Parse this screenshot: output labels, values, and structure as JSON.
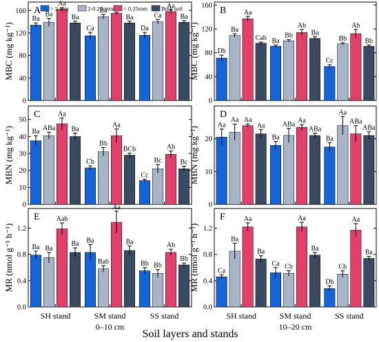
{
  "figure": {
    "xlabel": "Soil layers and stands",
    "stand_labels": [
      "SH stand",
      "SM stand",
      "SS stand"
    ],
    "depth_labels": [
      "0–10 cm",
      "10–20 cm"
    ]
  },
  "legend": [
    {
      "name": "> 2 mm",
      "color": "#1565d8"
    },
    {
      "name": "2-0.25 mm",
      "color": "#a8b4c8"
    },
    {
      "name": "< 0.25mm",
      "color": "#e0406a"
    },
    {
      "name": "Bulk soil",
      "color": "#3a4a60"
    }
  ],
  "chart_data": [
    {
      "panel": "A",
      "type": "bar",
      "ylabel": "MBC (mg kg⁻¹)",
      "ylim": [
        0,
        175
      ],
      "yticks": [
        0,
        40,
        80,
        120,
        160
      ],
      "categories": [
        "SH stand",
        "SM stand",
        "SS stand"
      ],
      "series": [
        {
          "name": "> 2 mm",
          "values": [
            134,
            115,
            116
          ],
          "errors": [
            4,
            6,
            5
          ],
          "letters": [
            "Ba",
            "Ca",
            "Da"
          ]
        },
        {
          "name": "2-0.25 mm",
          "values": [
            139,
            149,
            140
          ],
          "errors": [
            7,
            4,
            4
          ],
          "letters": [
            "Ba",
            "Ba",
            "Ca"
          ]
        },
        {
          "name": "< 0.25mm",
          "values": [
            162,
            155,
            158
          ],
          "errors": [
            3,
            2,
            3
          ],
          "letters": [
            "Aa",
            "Aa",
            "Aa"
          ]
        },
        {
          "name": "Bulk soil",
          "values": [
            138,
            138,
            139
          ],
          "errors": [
            3,
            3,
            3
          ],
          "letters": [
            "Ba",
            "Ba",
            "Ba"
          ]
        }
      ]
    },
    {
      "panel": "B",
      "type": "bar",
      "ylabel": "MBC (mg kg⁻¹)",
      "ylim": [
        0,
        165
      ],
      "yticks": [
        0,
        40,
        80,
        120,
        160
      ],
      "categories": [
        "SH stand",
        "SM stand",
        "SS stand"
      ],
      "series": [
        {
          "name": "> 2 mm",
          "values": [
            71,
            91,
            57
          ],
          "errors": [
            5,
            2,
            3
          ],
          "letters": [
            "Db",
            "Ba",
            "Cc"
          ]
        },
        {
          "name": "2-0.25 mm",
          "values": [
            109,
            100,
            95
          ],
          "errors": [
            3,
            2,
            2
          ],
          "letters": [
            "Ba",
            "Bb",
            "Bb"
          ]
        },
        {
          "name": "< 0.25mm",
          "values": [
            137,
            114,
            112
          ],
          "errors": [
            4,
            5,
            7
          ],
          "letters": [
            "Aa",
            "Ab",
            "Ab"
          ]
        },
        {
          "name": "Bulk soil",
          "values": [
            96,
            104,
            91
          ],
          "errors": [
            2,
            3,
            2
          ],
          "letters": [
            "Cab",
            "Ba",
            "Bb"
          ]
        }
      ]
    },
    {
      "panel": "C",
      "type": "bar",
      "ylabel": "MBN (mg kg⁻¹)",
      "ylim": [
        0,
        58
      ],
      "yticks": [
        0,
        10,
        20,
        30,
        40,
        50
      ],
      "categories": [
        "SH stand",
        "SM stand",
        "SS stand"
      ],
      "series": [
        {
          "name": "> 2 mm",
          "values": [
            37.5,
            21.5,
            14
          ],
          "errors": [
            3,
            1.2,
            0.8
          ],
          "letters": [
            "Ba",
            "Cb",
            "Cc"
          ]
        },
        {
          "name": "2-0.25 mm",
          "values": [
            40.5,
            31,
            21
          ],
          "errors": [
            2,
            2.5,
            2.5
          ],
          "letters": [
            "ABa",
            "Bb",
            "Bc"
          ]
        },
        {
          "name": "< 0.25mm",
          "values": [
            47.5,
            40.5,
            29.5
          ],
          "errors": [
            3.5,
            4,
            2
          ],
          "letters": [
            "Aa",
            "Aa",
            "Ab"
          ]
        },
        {
          "name": "Bulk soil",
          "values": [
            40,
            29,
            21
          ],
          "errors": [
            2,
            1.2,
            1.5
          ],
          "letters": [
            "Ba",
            "BCb",
            "Bc"
          ]
        }
      ]
    },
    {
      "panel": "D",
      "type": "bar",
      "ylabel": "MBN (mg kg⁻¹)",
      "ylim": [
        0,
        30
      ],
      "yticks": [
        0,
        10,
        20
      ],
      "categories": [
        "SH stand",
        "SM stand",
        "SS stand"
      ],
      "series": [
        {
          "name": "> 2 mm",
          "values": [
            20.5,
            18,
            17.5
          ],
          "errors": [
            2.5,
            1.2,
            1.3
          ],
          "letters": [
            "Aa",
            "Ba",
            "Ba"
          ]
        },
        {
          "name": "2-0.25 mm",
          "values": [
            22,
            21,
            24
          ],
          "errors": [
            2.5,
            2.2,
            2.8
          ],
          "letters": [
            "Aa",
            "ABa",
            "Aa"
          ]
        },
        {
          "name": "< 0.25mm",
          "values": [
            24,
            23.5,
            21.5
          ],
          "errors": [
            0.5,
            0.8,
            2.5
          ],
          "letters": [
            "Aa",
            "Aa",
            "ABa"
          ]
        },
        {
          "name": "Bulk soil",
          "values": [
            21.5,
            21,
            21
          ],
          "errors": [
            1.3,
            0.7,
            1.1
          ],
          "letters": [
            "Aa",
            "ABa",
            "ABa"
          ]
        }
      ]
    },
    {
      "panel": "E",
      "type": "bar",
      "ylabel": "MR (nmol g⁻¹ h⁻¹)",
      "ylim": [
        0,
        1.5
      ],
      "yticks": [
        0.0,
        0.4,
        0.8,
        1.2
      ],
      "categories": [
        "SH stand",
        "SM stand",
        "SS stand"
      ],
      "series": [
        {
          "name": "> 2 mm",
          "values": [
            0.79,
            0.83,
            0.55
          ],
          "errors": [
            0.06,
            0.12,
            0.05
          ],
          "letters": [
            "Ba",
            "Ba",
            "Bb"
          ]
        },
        {
          "name": "2-0.25 mm",
          "values": [
            0.75,
            0.58,
            0.51
          ],
          "errors": [
            0.08,
            0.05,
            0.06
          ],
          "letters": [
            "Ba",
            "Bab",
            "Bb"
          ]
        },
        {
          "name": "< 0.25mm",
          "values": [
            1.19,
            1.29,
            0.83
          ],
          "errors": [
            0.09,
            0.17,
            0.05
          ],
          "letters": [
            "Aab",
            "Aa",
            "Ab"
          ]
        },
        {
          "name": "Bulk soil",
          "values": [
            0.83,
            0.86,
            0.64
          ],
          "errors": [
            0.07,
            0.07,
            0.03
          ],
          "letters": [
            "Ba",
            "Ba",
            "Bb"
          ]
        }
      ]
    },
    {
      "panel": "F",
      "type": "bar",
      "ylabel": "MR (nmol g⁻¹ h⁻¹)",
      "ylim": [
        0,
        1.5
      ],
      "yticks": [
        0.0,
        0.4,
        0.8,
        1.2
      ],
      "categories": [
        "SH stand",
        "SM stand",
        "SS stand"
      ],
      "series": [
        {
          "name": "> 2 mm",
          "values": [
            0.46,
            0.52,
            0.28
          ],
          "errors": [
            0.03,
            0.08,
            0.04
          ],
          "letters": [
            "Ca",
            "Ca",
            "Db"
          ]
        },
        {
          "name": "2-0.25 mm",
          "values": [
            0.85,
            0.51,
            0.5
          ],
          "errors": [
            0.12,
            0.04,
            0.05
          ],
          "letters": [
            "Ba",
            "Cb",
            "Cb"
          ]
        },
        {
          "name": "< 0.25mm",
          "values": [
            1.22,
            1.22,
            1.17
          ],
          "errors": [
            0.06,
            0.07,
            0.1
          ],
          "letters": [
            "Aa",
            "Aa",
            "Aa"
          ]
        },
        {
          "name": "Bulk soil",
          "values": [
            0.73,
            0.79,
            0.74
          ],
          "errors": [
            0.05,
            0.04,
            0.03
          ],
          "letters": [
            "Ba",
            "Ba",
            "Ba"
          ]
        }
      ]
    }
  ]
}
